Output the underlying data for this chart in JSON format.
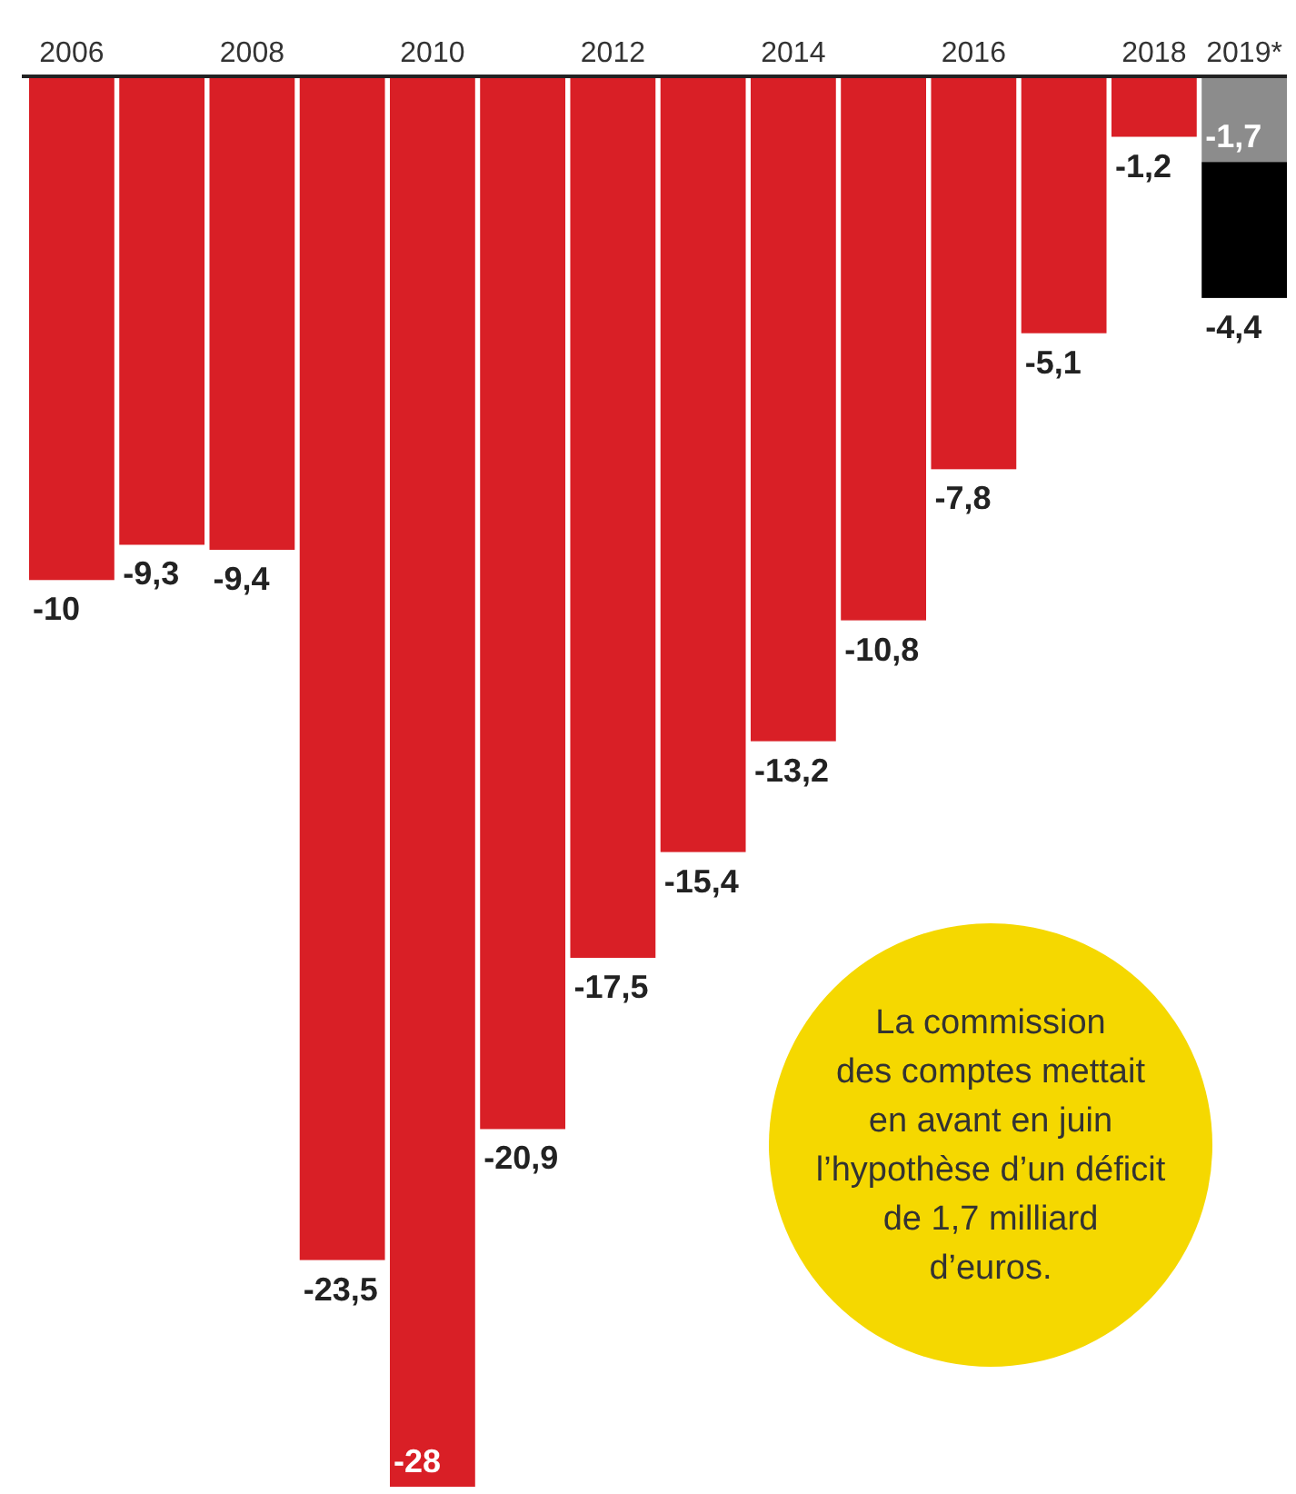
{
  "chart_data": {
    "type": "bar",
    "stacked": true,
    "categories": [
      "2006",
      null,
      "2008",
      null,
      "2010",
      null,
      "2012",
      null,
      "2014",
      null,
      "2016",
      null,
      "2018",
      "2019*"
    ],
    "series": [
      {
        "color": "#d91f26",
        "values": [
          -10,
          -9.3,
          -9.4,
          -23.5,
          -28,
          -20.9,
          -17.5,
          -15.4,
          -13.2,
          -10.8,
          -7.8,
          -5.1,
          -1.2,
          null
        ],
        "value_labels": [
          "-10",
          "-9,3",
          "-9,4",
          "-23,5",
          "-28",
          "-20,9",
          "-17,5",
          "-15,4",
          "-13,2",
          "-10,8",
          "-7,8",
          "-5,1",
          "-1,2",
          null
        ]
      },
      {
        "color": "#8c8c8c",
        "values": [
          null,
          null,
          null,
          null,
          null,
          null,
          null,
          null,
          null,
          null,
          null,
          null,
          null,
          -1.7
        ],
        "value_labels": [
          null,
          null,
          null,
          null,
          null,
          null,
          null,
          null,
          null,
          null,
          null,
          null,
          null,
          "-1,7"
        ]
      },
      {
        "color": "#000000",
        "values": [
          null,
          null,
          null,
          null,
          null,
          null,
          null,
          null,
          null,
          null,
          null,
          null,
          null,
          -2.7
        ]
      }
    ],
    "totals": [
      null,
      null,
      null,
      null,
      null,
      null,
      null,
      null,
      null,
      null,
      null,
      null,
      null,
      "-4,4"
    ],
    "annotations": [
      "La commission\ndes comptes mettait\nen avant en juin\nl’hypothèse d’un déficit\nde 1,7 milliard\nd’euros."
    ]
  }
}
